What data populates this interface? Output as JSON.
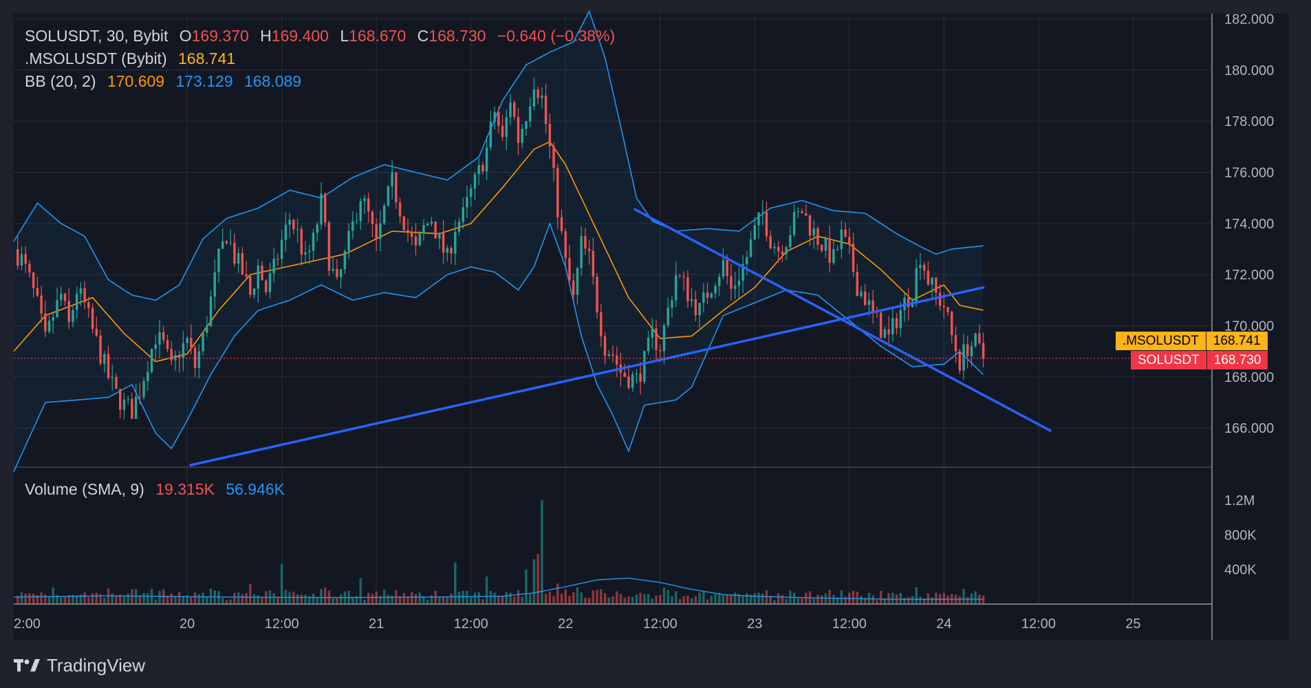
{
  "legend": {
    "symbol_line": "SOLUSDT, 30, Bybit",
    "open_label": "O",
    "open": "169.370",
    "high_label": "H",
    "high": "169.400",
    "low_label": "L",
    "low": "168.670",
    "close_label": "C",
    "close": "168.730",
    "change": "−0.640 (−0.38%)",
    "mark_name": ".MSOLUSDT (Bybit)",
    "mark_value": "168.741",
    "bb_name": "BB (20, 2)",
    "bb_basis": "170.609",
    "bb_upper": "173.129",
    "bb_lower": "168.089",
    "vol_name": "Volume (SMA, 9)",
    "vol_value": "19.315K",
    "vol_sma": "56.946K"
  },
  "price_tags": {
    "mark_label": ".MSOLUSDT",
    "mark_value": "168.741",
    "last_label": "SOLUSDT",
    "last_value": "168.730"
  },
  "brand": "TradingView",
  "colors": {
    "bg": "#131722",
    "frame": "#1f222d",
    "grid": "#2a2e39",
    "up": "#26a69a",
    "down": "#ef5350",
    "bb_basis": "#ff9800",
    "bb_band": "#2962ff",
    "trend": "#2962ff",
    "mark": "#ffb31a",
    "last": "#f23645",
    "vol_sma": "#2962ff"
  },
  "chart_data": {
    "type": "candlestick",
    "interval_minutes": 30,
    "price_axis": {
      "ticks": [
        "166.000",
        "168.000",
        "170.000",
        "172.000",
        "174.000",
        "176.000",
        "178.000",
        "180.000",
        "182.000"
      ],
      "range": [
        164.5,
        182.2
      ]
    },
    "volume_axis": {
      "ticks": [
        "400K",
        "800K",
        "1.2M"
      ],
      "range": [
        0,
        1400000
      ]
    },
    "time_axis": {
      "ticks": [
        "2:00",
        "20",
        "12:00",
        "21",
        "12:00",
        "22",
        "12:00",
        "23",
        "12:00",
        "24",
        "12:00",
        "25"
      ],
      "tick_hours": [
        -22,
        0,
        12,
        24,
        36,
        48,
        60,
        72,
        84,
        96,
        108,
        120
      ],
      "hour_range": [
        -22,
        130
      ]
    },
    "price_path": [
      [
        -22,
        173.0
      ],
      [
        -21,
        172.6
      ],
      [
        -20,
        171.8
      ],
      [
        -19,
        170.8
      ],
      [
        -18,
        169.4
      ],
      [
        -17,
        170.4
      ],
      [
        -16,
        171.2
      ],
      [
        -15,
        170.0
      ],
      [
        -14,
        171.4
      ],
      [
        -13,
        170.8
      ],
      [
        -12,
        169.8
      ],
      [
        -11,
        168.9
      ],
      [
        -10,
        168.0
      ],
      [
        -9,
        167.3
      ],
      [
        -8,
        166.9
      ],
      [
        -7,
        166.7
      ],
      [
        -6,
        167.5
      ],
      [
        -5,
        168.6
      ],
      [
        -4,
        169.6
      ],
      [
        -3,
        169.2
      ],
      [
        -2,
        168.3
      ],
      [
        -1,
        169.0
      ],
      [
        0,
        169.4
      ],
      [
        1,
        168.4
      ],
      [
        2,
        169.5
      ],
      [
        3,
        171.0
      ],
      [
        4,
        172.6
      ],
      [
        5,
        173.6
      ],
      [
        6,
        172.7
      ],
      [
        7,
        172.1
      ],
      [
        8,
        171.2
      ],
      [
        9,
        172.3
      ],
      [
        10,
        171.4
      ],
      [
        11,
        172.2
      ],
      [
        12,
        173.3
      ],
      [
        13,
        174.2
      ],
      [
        14,
        173.6
      ],
      [
        15,
        172.5
      ],
      [
        16,
        173.3
      ],
      [
        17,
        174.8
      ],
      [
        18,
        172.6
      ],
      [
        19,
        171.5
      ],
      [
        20,
        172.7
      ],
      [
        21,
        173.9
      ],
      [
        22,
        175.1
      ],
      [
        23,
        174.3
      ],
      [
        24,
        173.1
      ],
      [
        25,
        174.5
      ],
      [
        26,
        175.6
      ],
      [
        27,
        174.6
      ],
      [
        28,
        173.7
      ],
      [
        29,
        172.9
      ],
      [
        30,
        173.8
      ],
      [
        31,
        174.2
      ],
      [
        32,
        173.3
      ],
      [
        33,
        172.6
      ],
      [
        34,
        173.9
      ],
      [
        35,
        174.3
      ],
      [
        36,
        175.2
      ],
      [
        37,
        176.0
      ],
      [
        38,
        176.9
      ],
      [
        39,
        178.4
      ],
      [
        40,
        177.2
      ],
      [
        41,
        178.9
      ],
      [
        42,
        177.3
      ],
      [
        43,
        178.3
      ],
      [
        44,
        179.6
      ],
      [
        45,
        178.9
      ],
      [
        46,
        176.9
      ],
      [
        47,
        174.6
      ],
      [
        48,
        172.4
      ],
      [
        49,
        171.0
      ],
      [
        50,
        173.2
      ],
      [
        51,
        172.6
      ],
      [
        52,
        170.8
      ],
      [
        53,
        169.2
      ],
      [
        54,
        168.9
      ],
      [
        55,
        168.2
      ],
      [
        56,
        168.0
      ],
      [
        57,
        167.9
      ],
      [
        58,
        168.6
      ],
      [
        59,
        169.6
      ],
      [
        60,
        169.2
      ],
      [
        61,
        170.6
      ],
      [
        62,
        172.0
      ],
      [
        63,
        171.6
      ],
      [
        64,
        171.0
      ],
      [
        65,
        170.6
      ],
      [
        66,
        171.3
      ],
      [
        67,
        171.9
      ],
      [
        68,
        172.4
      ],
      [
        69,
        171.4
      ],
      [
        70,
        172.0
      ],
      [
        71,
        172.7
      ],
      [
        72,
        173.7
      ],
      [
        73,
        174.4
      ],
      [
        74,
        173.4
      ],
      [
        75,
        173.0
      ],
      [
        76,
        173.4
      ],
      [
        77,
        174.1
      ],
      [
        78,
        174.5
      ],
      [
        79,
        173.9
      ],
      [
        80,
        173.4
      ],
      [
        81,
        173.0
      ],
      [
        82,
        172.6
      ],
      [
        83,
        173.5
      ],
      [
        84,
        172.8
      ],
      [
        85,
        171.6
      ],
      [
        86,
        171.1
      ],
      [
        87,
        170.4
      ],
      [
        88,
        169.9
      ],
      [
        89,
        169.5
      ],
      [
        90,
        170.3
      ],
      [
        91,
        170.9
      ],
      [
        92,
        171.4
      ],
      [
        93,
        172.8
      ],
      [
        94,
        171.8
      ],
      [
        95,
        171.2
      ],
      [
        96,
        170.8
      ],
      [
        97,
        169.6
      ],
      [
        98,
        168.6
      ],
      [
        99,
        169.2
      ],
      [
        100,
        169.3
      ],
      [
        101,
        168.73
      ]
    ],
    "bb_basis": [
      [
        -22,
        169.0
      ],
      [
        -18,
        170.4
      ],
      [
        -12,
        171.1
      ],
      [
        -8,
        169.7
      ],
      [
        -4,
        168.6
      ],
      [
        0,
        168.9
      ],
      [
        4,
        170.6
      ],
      [
        8,
        172.0
      ],
      [
        14,
        172.4
      ],
      [
        20,
        172.8
      ],
      [
        26,
        173.7
      ],
      [
        32,
        173.6
      ],
      [
        36,
        174.0
      ],
      [
        40,
        175.4
      ],
      [
        44,
        176.9
      ],
      [
        46,
        177.2
      ],
      [
        48,
        176.3
      ],
      [
        52,
        173.7
      ],
      [
        56,
        171.1
      ],
      [
        60,
        169.5
      ],
      [
        64,
        169.6
      ],
      [
        68,
        170.6
      ],
      [
        72,
        171.5
      ],
      [
        76,
        172.9
      ],
      [
        80,
        173.5
      ],
      [
        84,
        173.2
      ],
      [
        88,
        172.2
      ],
      [
        92,
        171.0
      ],
      [
        96,
        171.6
      ],
      [
        98,
        170.8
      ],
      [
        101,
        170.609
      ]
    ],
    "bb_upper": [
      [
        -22,
        173.3
      ],
      [
        -19,
        174.8
      ],
      [
        -16,
        174.0
      ],
      [
        -13,
        173.5
      ],
      [
        -10,
        171.8
      ],
      [
        -7,
        171.2
      ],
      [
        -4,
        171.0
      ],
      [
        -1,
        171.6
      ],
      [
        2,
        173.4
      ],
      [
        5,
        174.2
      ],
      [
        9,
        174.6
      ],
      [
        13,
        175.3
      ],
      [
        17,
        175.0
      ],
      [
        21,
        175.8
      ],
      [
        25,
        176.3
      ],
      [
        29,
        176.0
      ],
      [
        33,
        175.7
      ],
      [
        37,
        176.6
      ],
      [
        40,
        178.8
      ],
      [
        43,
        180.2
      ],
      [
        46,
        180.7
      ],
      [
        49,
        181.1
      ],
      [
        51,
        182.3
      ],
      [
        53,
        180.5
      ],
      [
        55,
        177.8
      ],
      [
        57,
        175.0
      ],
      [
        59,
        174.1
      ],
      [
        62,
        173.7
      ],
      [
        66,
        173.8
      ],
      [
        70,
        173.7
      ],
      [
        74,
        174.6
      ],
      [
        78,
        174.9
      ],
      [
        82,
        174.5
      ],
      [
        86,
        174.4
      ],
      [
        90,
        173.6
      ],
      [
        93,
        173.1
      ],
      [
        95,
        172.8
      ],
      [
        97,
        173.0
      ],
      [
        101,
        173.129
      ]
    ],
    "bb_lower": [
      [
        -22,
        164.3
      ],
      [
        -18,
        167.0
      ],
      [
        -14,
        167.1
      ],
      [
        -10,
        167.2
      ],
      [
        -7,
        167.7
      ],
      [
        -4,
        165.8
      ],
      [
        -2,
        165.2
      ],
      [
        0,
        166.3
      ],
      [
        3,
        168.1
      ],
      [
        6,
        169.6
      ],
      [
        9,
        170.6
      ],
      [
        13,
        171.0
      ],
      [
        17,
        171.6
      ],
      [
        21,
        171.0
      ],
      [
        25,
        171.3
      ],
      [
        29,
        171.1
      ],
      [
        33,
        172.0
      ],
      [
        36,
        172.3
      ],
      [
        39,
        172.1
      ],
      [
        42,
        171.4
      ],
      [
        44,
        172.3
      ],
      [
        46,
        174.0
      ],
      [
        48,
        172.3
      ],
      [
        50,
        169.6
      ],
      [
        52,
        167.7
      ],
      [
        54,
        166.5
      ],
      [
        56,
        165.1
      ],
      [
        58,
        166.9
      ],
      [
        60,
        167.0
      ],
      [
        62,
        167.1
      ],
      [
        64,
        167.6
      ],
      [
        66,
        169.0
      ],
      [
        68,
        170.4
      ],
      [
        72,
        170.9
      ],
      [
        76,
        171.4
      ],
      [
        80,
        171.2
      ],
      [
        84,
        170.2
      ],
      [
        88,
        169.2
      ],
      [
        92,
        168.4
      ],
      [
        96,
        168.5
      ],
      [
        98,
        169.0
      ],
      [
        101,
        168.089
      ]
    ],
    "trendlines": [
      {
        "from": [
          0.42,
          164.55
        ],
        "to": [
          101.0,
          171.5
        ]
      },
      {
        "from": [
          56.8,
          174.55
        ],
        "to": [
          109.5,
          165.9
        ]
      }
    ],
    "volume_sma": [
      [
        -22,
        80000
      ],
      [
        -10,
        95000
      ],
      [
        0,
        85000
      ],
      [
        10,
        78000
      ],
      [
        20,
        75000
      ],
      [
        30,
        80000
      ],
      [
        40,
        90000
      ],
      [
        44,
        130000
      ],
      [
        48,
        200000
      ],
      [
        52,
        280000
      ],
      [
        56,
        300000
      ],
      [
        60,
        250000
      ],
      [
        64,
        170000
      ],
      [
        68,
        110000
      ],
      [
        72,
        90000
      ],
      [
        80,
        70000
      ],
      [
        90,
        55000
      ],
      [
        101,
        56946
      ]
    ],
    "volume_spikes": [
      [
        45,
        1200000
      ],
      [
        44.5,
        580000
      ],
      [
        44,
        520000
      ],
      [
        43,
        400000
      ],
      [
        34,
        480000
      ],
      [
        38,
        320000
      ],
      [
        12,
        460000
      ],
      [
        -3,
        170000
      ],
      [
        -17,
        190000
      ],
      [
        22,
        300000
      ],
      [
        8,
        230000
      ]
    ]
  }
}
